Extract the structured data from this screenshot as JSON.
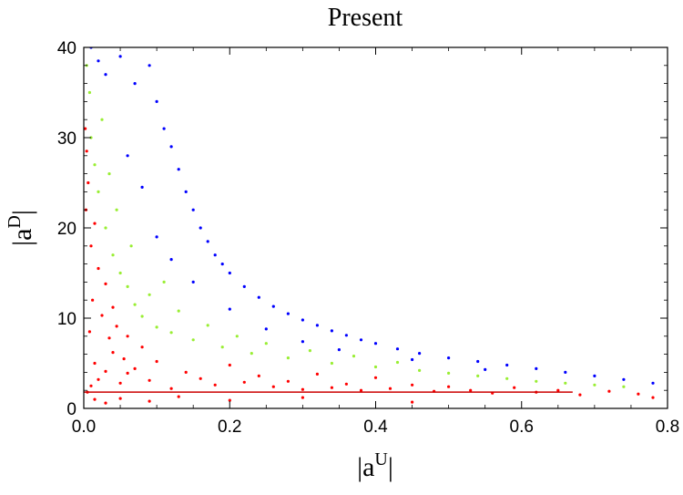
{
  "chart_data": {
    "type": "scatter",
    "title": "Present",
    "xlabel": {
      "prefix": "|a",
      "sup": "U",
      "suffix": "|"
    },
    "ylabel": {
      "prefix": "|a",
      "sup": "D",
      "suffix": "|"
    },
    "xlim": [
      0,
      0.8
    ],
    "ylim": [
      0,
      40
    ],
    "xticks": [
      "0.0",
      "0.2",
      "0.4",
      "0.6",
      "0.8"
    ],
    "yticks": [
      "0",
      "10",
      "20",
      "30",
      "40"
    ],
    "grid": false,
    "legend": "none",
    "series": [
      {
        "color": "#ff0000",
        "points": [
          [
            0.005,
            1.8
          ],
          [
            0.01,
            2.5
          ],
          [
            0.02,
            3.2
          ],
          [
            0.015,
            5.0
          ],
          [
            0.03,
            4.1
          ],
          [
            0.04,
            6.2
          ],
          [
            0.05,
            2.8
          ],
          [
            0.06,
            3.9
          ],
          [
            0.008,
            8.5
          ],
          [
            0.012,
            12.0
          ],
          [
            0.02,
            15.5
          ],
          [
            0.01,
            18.0
          ],
          [
            0.025,
            10.3
          ],
          [
            0.035,
            7.8
          ],
          [
            0.045,
            9.1
          ],
          [
            0.055,
            5.5
          ],
          [
            0.07,
            4.4
          ],
          [
            0.08,
            6.8
          ],
          [
            0.09,
            3.1
          ],
          [
            0.1,
            5.2
          ],
          [
            0.12,
            2.2
          ],
          [
            0.14,
            4.0
          ],
          [
            0.16,
            3.3
          ],
          [
            0.18,
            2.6
          ],
          [
            0.2,
            4.8
          ],
          [
            0.22,
            2.9
          ],
          [
            0.24,
            3.6
          ],
          [
            0.26,
            2.4
          ],
          [
            0.28,
            3.0
          ],
          [
            0.3,
            2.1
          ],
          [
            0.32,
            3.8
          ],
          [
            0.34,
            2.3
          ],
          [
            0.36,
            2.7
          ],
          [
            0.38,
            2.0
          ],
          [
            0.4,
            3.4
          ],
          [
            0.42,
            2.2
          ],
          [
            0.45,
            2.6
          ],
          [
            0.48,
            1.9
          ],
          [
            0.5,
            2.4
          ],
          [
            0.53,
            2.0
          ],
          [
            0.56,
            1.7
          ],
          [
            0.59,
            2.3
          ],
          [
            0.62,
            1.8
          ],
          [
            0.65,
            2.0
          ],
          [
            0.68,
            1.5
          ],
          [
            0.72,
            1.9
          ],
          [
            0.76,
            1.6
          ],
          [
            0.78,
            1.2
          ],
          [
            0.003,
            22.0
          ],
          [
            0.006,
            25.0
          ],
          [
            0.004,
            28.5
          ],
          [
            0.002,
            31.0
          ],
          [
            0.015,
            20.5
          ],
          [
            0.03,
            13.8
          ],
          [
            0.04,
            11.2
          ],
          [
            0.06,
            8.0
          ],
          [
            0.015,
            1.0
          ],
          [
            0.03,
            0.6
          ],
          [
            0.05,
            1.1
          ],
          [
            0.09,
            0.8
          ],
          [
            0.13,
            1.3
          ],
          [
            0.2,
            0.9
          ],
          [
            0.3,
            1.2
          ],
          [
            0.45,
            0.7
          ]
        ]
      },
      {
        "color": "#99ee33",
        "points": [
          [
            0.004,
            38.0
          ],
          [
            0.008,
            35.0
          ],
          [
            0.01,
            30.0
          ],
          [
            0.015,
            27.0
          ],
          [
            0.02,
            24.0
          ],
          [
            0.03,
            20.0
          ],
          [
            0.04,
            17.0
          ],
          [
            0.05,
            15.0
          ],
          [
            0.06,
            13.5
          ],
          [
            0.07,
            11.5
          ],
          [
            0.08,
            10.2
          ],
          [
            0.09,
            12.6
          ],
          [
            0.1,
            9.0
          ],
          [
            0.11,
            14.0
          ],
          [
            0.12,
            8.4
          ],
          [
            0.13,
            10.8
          ],
          [
            0.15,
            7.6
          ],
          [
            0.17,
            9.2
          ],
          [
            0.19,
            6.8
          ],
          [
            0.21,
            8.0
          ],
          [
            0.23,
            6.1
          ],
          [
            0.25,
            7.2
          ],
          [
            0.28,
            5.6
          ],
          [
            0.31,
            6.4
          ],
          [
            0.34,
            5.0
          ],
          [
            0.37,
            5.8
          ],
          [
            0.4,
            4.6
          ],
          [
            0.43,
            5.1
          ],
          [
            0.46,
            4.2
          ],
          [
            0.5,
            3.9
          ],
          [
            0.54,
            3.6
          ],
          [
            0.58,
            3.3
          ],
          [
            0.62,
            3.0
          ],
          [
            0.66,
            2.8
          ],
          [
            0.7,
            2.6
          ],
          [
            0.74,
            2.4
          ],
          [
            0.025,
            32.0
          ],
          [
            0.045,
            22.0
          ],
          [
            0.065,
            18.0
          ],
          [
            0.035,
            26.0
          ]
        ]
      },
      {
        "color": "#0000ff",
        "points": [
          [
            0.01,
            40.0
          ],
          [
            0.02,
            38.5
          ],
          [
            0.03,
            37.0
          ],
          [
            0.05,
            39.0
          ],
          [
            0.07,
            36.0
          ],
          [
            0.09,
            38.0
          ],
          [
            0.1,
            34.0
          ],
          [
            0.11,
            31.0
          ],
          [
            0.12,
            29.0
          ],
          [
            0.13,
            26.5
          ],
          [
            0.14,
            24.0
          ],
          [
            0.15,
            22.0
          ],
          [
            0.16,
            20.0
          ],
          [
            0.17,
            18.5
          ],
          [
            0.18,
            17.0
          ],
          [
            0.19,
            16.0
          ],
          [
            0.2,
            15.0
          ],
          [
            0.22,
            13.5
          ],
          [
            0.24,
            12.3
          ],
          [
            0.26,
            11.3
          ],
          [
            0.28,
            10.5
          ],
          [
            0.3,
            9.8
          ],
          [
            0.32,
            9.2
          ],
          [
            0.34,
            8.6
          ],
          [
            0.36,
            8.1
          ],
          [
            0.38,
            7.6
          ],
          [
            0.4,
            7.2
          ],
          [
            0.43,
            6.6
          ],
          [
            0.46,
            6.1
          ],
          [
            0.5,
            5.6
          ],
          [
            0.54,
            5.2
          ],
          [
            0.58,
            4.8
          ],
          [
            0.62,
            4.4
          ],
          [
            0.66,
            4.0
          ],
          [
            0.7,
            3.6
          ],
          [
            0.74,
            3.2
          ],
          [
            0.78,
            2.8
          ],
          [
            0.06,
            28.0
          ],
          [
            0.08,
            24.5
          ],
          [
            0.1,
            19.0
          ],
          [
            0.12,
            16.5
          ],
          [
            0.15,
            14.0
          ],
          [
            0.2,
            11.0
          ],
          [
            0.25,
            8.8
          ],
          [
            0.3,
            7.4
          ],
          [
            0.35,
            6.5
          ],
          [
            0.45,
            5.4
          ],
          [
            0.55,
            4.3
          ]
        ]
      }
    ],
    "lines": [
      {
        "color": "#cc0000",
        "x": [
          0.0,
          0.67
        ],
        "y": [
          1.8,
          1.8
        ]
      }
    ]
  }
}
